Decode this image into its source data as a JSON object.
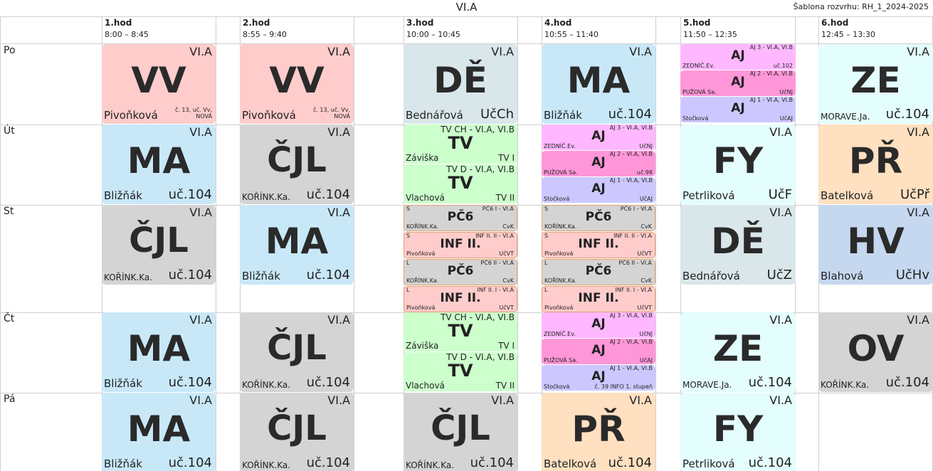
{
  "title": "VI.A",
  "template_label": "Šablona rozvrhu: RH_1_2024-2025",
  "periods": [
    {
      "name": "1.hod",
      "time": "8:00 – 8:45"
    },
    {
      "name": "2.hod",
      "time": "8:55 – 9:40"
    },
    {
      "name": "3.hod",
      "time": "10:00 – 10:45"
    },
    {
      "name": "4.hod",
      "time": "10:55 – 11:40"
    },
    {
      "name": "5.hod",
      "time": "11:50 – 12:35"
    },
    {
      "name": "6.hod",
      "time": "12:45 – 13:30"
    }
  ],
  "days": [
    "Po",
    "Út",
    "St",
    "Čt",
    "Pá"
  ],
  "colors": {
    "VV": "#ffcccc",
    "DE": "#d9e6ea",
    "MA": "#c8e8f8",
    "ZE": "#e4fdfd",
    "CJL": "#d4d4d4",
    "TV": "#ccffcc",
    "FY": "#e4fdfd",
    "PR": "#ffe0c0",
    "HV": "#c6d8f0",
    "OV": "#d4d4d4",
    "AJ3": "#ffb8ff",
    "AJ2": "#ff96d8",
    "AJ1": "#ccc8ff",
    "PC6": "#d4d4d4",
    "INF": "#ffcccc"
  },
  "lessons": [
    [
      {
        "type": "single",
        "subject": "VV",
        "class": "VI.A",
        "teacher": "Pivoňková",
        "room": "č. 13, uč. Vv, NOVÁ",
        "color": "#ffcccc"
      },
      {
        "type": "single",
        "subject": "VV",
        "class": "VI.A",
        "teacher": "Pivoňková",
        "room": "č. 13, uč. Vv, NOVÁ",
        "color": "#ffcccc"
      },
      {
        "type": "single",
        "subject": "DĚ",
        "class": "VI.A",
        "teacher": "Bednářová",
        "room": "UčCh",
        "color": "#d9e6ea"
      },
      {
        "type": "single",
        "subject": "MA",
        "class": "VI.A",
        "teacher": "Bližňák",
        "room": "uč.104",
        "color": "#c8e8f8"
      },
      {
        "type": "aj",
        "groups": [
          {
            "subject": "AJ",
            "class": "AJ 3 - VI.A, VI.B",
            "teacher": "ZEDNÍČ.Ev.",
            "room": "uč.102",
            "color": "#ffb8ff"
          },
          {
            "subject": "AJ",
            "class": "AJ 2 - VI.A, VI.B",
            "teacher": "PUŽOVÁ Sa.",
            "room": "UčNJ",
            "color": "#ff96d8"
          },
          {
            "subject": "AJ",
            "class": "AJ 1 - VI.A, VI.B",
            "teacher": "Stočková",
            "room": "UčAJ",
            "color": "#ccc8ff"
          }
        ]
      },
      {
        "type": "single",
        "subject": "ZE",
        "class": "VI.A",
        "teacher": "MORAVE.Ja.",
        "room": "uč.104",
        "color": "#e4fdfd"
      }
    ],
    [
      {
        "type": "single",
        "subject": "MA",
        "class": "VI.A",
        "teacher": "Bližňák",
        "room": "uč.104",
        "color": "#c8e8f8"
      },
      {
        "type": "single",
        "subject": "ČJL",
        "class": "VI.A",
        "teacher": "KOŘÍNK.Ka.",
        "room": "uč.104",
        "color": "#d4d4d4"
      },
      {
        "type": "tv",
        "groups": [
          {
            "subject": "TV",
            "class": "TV CH - VI.A, VI.B",
            "teacher": "Záviška",
            "room": "TV I",
            "color": "#ccffcc"
          },
          {
            "subject": "TV",
            "class": "TV D - VI.A, VI.B",
            "teacher": "Vlachová",
            "room": "TV II",
            "color": "#ccffcc"
          }
        ]
      },
      {
        "type": "aj",
        "groups": [
          {
            "subject": "AJ",
            "class": "AJ 3 - VI.A, VI.B",
            "teacher": "ZEDNÍČ.Ev.",
            "room": "UčNJ",
            "color": "#ffb8ff"
          },
          {
            "subject": "AJ",
            "class": "AJ 2 - VI.A, VI.B",
            "teacher": "PUŽOVÁ Sa.",
            "room": "uč.98",
            "color": "#ff96d8"
          },
          {
            "subject": "AJ",
            "class": "AJ 1 - VI.A, VI.B",
            "teacher": "Stočková",
            "room": "UčAJ",
            "color": "#ccc8ff"
          }
        ]
      },
      {
        "type": "single",
        "subject": "FY",
        "class": "VI.A",
        "teacher": "Petrliková",
        "room": "UčF",
        "color": "#e4fdfd"
      },
      {
        "type": "single",
        "subject": "PŘ",
        "class": "VI.A",
        "teacher": "Batelková",
        "room": "UčPř",
        "color": "#ffe0c0"
      }
    ],
    [
      {
        "type": "single",
        "subject": "ČJL",
        "class": "VI.A",
        "teacher": "KOŘÍNK.Ka.",
        "room": "uč.104",
        "color": "#d4d4d4"
      },
      {
        "type": "single",
        "subject": "MA",
        "class": "VI.A",
        "teacher": "Bližňák",
        "room": "uč.104",
        "color": "#c8e8f8"
      },
      {
        "type": "quad",
        "groups": [
          {
            "side": "S",
            "subject": "PČ6",
            "class": "PČ6 I - VI.A",
            "teacher": "KOŘÍNK.Ka.",
            "room": "CvK",
            "color": "#d4d4d4"
          },
          {
            "side": "S",
            "subject": "INF II.",
            "class": "INF II. II - VI.A",
            "teacher": "Pivoňková",
            "room": "UčVT",
            "color": "#ffcccc"
          },
          {
            "side": "L",
            "subject": "PČ6",
            "class": "PČ6 II - VI.A",
            "teacher": "KOŘÍNK.Ka.",
            "room": "CvK",
            "color": "#d4d4d4"
          },
          {
            "side": "L",
            "subject": "INF II.",
            "class": "INF II. I - VI.A",
            "teacher": "Pivoňková",
            "room": "UčVT",
            "color": "#ffcccc"
          }
        ]
      },
      {
        "type": "quad",
        "groups": [
          {
            "side": "S",
            "subject": "PČ6",
            "class": "PČ6 I - VI.A",
            "teacher": "KOŘÍNK.Ka.",
            "room": "CvK",
            "color": "#d4d4d4"
          },
          {
            "side": "S",
            "subject": "INF II.",
            "class": "INF II. II - VI.A",
            "teacher": "Pivoňková",
            "room": "UčVT",
            "color": "#ffcccc"
          },
          {
            "side": "L",
            "subject": "PČ6",
            "class": "PČ6 II - VI.A",
            "teacher": "KOŘÍNK.Ka.",
            "room": "CvK",
            "color": "#d4d4d4"
          },
          {
            "side": "L",
            "subject": "INF II.",
            "class": "INF II. I - VI.A",
            "teacher": "Pivoňková",
            "room": "UčVT",
            "color": "#ffcccc"
          }
        ]
      },
      {
        "type": "single",
        "subject": "DĚ",
        "class": "VI.A",
        "teacher": "Bednářová",
        "room": "UčZ",
        "color": "#d9e6ea"
      },
      {
        "type": "single",
        "subject": "HV",
        "class": "VI.A",
        "teacher": "Blahová",
        "room": "UčHv",
        "color": "#c6d8f0"
      }
    ],
    [
      {
        "type": "single",
        "subject": "MA",
        "class": "VI.A",
        "teacher": "Bližňák",
        "room": "uč.104",
        "color": "#c8e8f8"
      },
      {
        "type": "single",
        "subject": "ČJL",
        "class": "VI.A",
        "teacher": "KOŘÍNK.Ka.",
        "room": "uč.104",
        "color": "#d4d4d4"
      },
      {
        "type": "tv",
        "groups": [
          {
            "subject": "TV",
            "class": "TV CH - VI.A, VI.B",
            "teacher": "Záviška",
            "room": "TV I",
            "color": "#ccffcc"
          },
          {
            "subject": "TV",
            "class": "TV D - VI.A, VI.B",
            "teacher": "Vlachová",
            "room": "TV II",
            "color": "#ccffcc"
          }
        ]
      },
      {
        "type": "aj",
        "groups": [
          {
            "subject": "AJ",
            "class": "AJ 3 - VI.A, VI.B",
            "teacher": "ZEDNÍČ.Ev.",
            "room": "UčNJ",
            "color": "#ffb8ff"
          },
          {
            "subject": "AJ",
            "class": "AJ 2 - VI.A, VI.B",
            "teacher": "PUŽOVÁ Sa.",
            "room": "UčAJ",
            "color": "#ff96d8"
          },
          {
            "subject": "AJ",
            "class": "AJ 1 - VI.A, VI.B",
            "teacher": "Stočková",
            "room": "č. 39 INFO 1. stupeň",
            "color": "#ccc8ff"
          }
        ]
      },
      {
        "type": "single",
        "subject": "ZE",
        "class": "VI.A",
        "teacher": "MORAVE.Ja.",
        "room": "uč.104",
        "color": "#e4fdfd"
      },
      {
        "type": "single",
        "subject": "OV",
        "class": "VI.A",
        "teacher": "KOŘÍNK.Ka.",
        "room": "uč.104",
        "color": "#d4d4d4"
      }
    ],
    [
      {
        "type": "single",
        "subject": "MA",
        "class": "VI.A",
        "teacher": "Bližňák",
        "room": "uč.104",
        "color": "#c8e8f8"
      },
      {
        "type": "single",
        "subject": "ČJL",
        "class": "VI.A",
        "teacher": "KOŘÍNK.Ka.",
        "room": "uč.104",
        "color": "#d4d4d4"
      },
      {
        "type": "single",
        "subject": "ČJL",
        "class": "VI.A",
        "teacher": "KOŘÍNK.Ka.",
        "room": "uč.104",
        "color": "#d4d4d4"
      },
      {
        "type": "single",
        "subject": "PŘ",
        "class": "VI.A",
        "teacher": "Batelková",
        "room": "uč.104",
        "color": "#ffe0c0"
      },
      {
        "type": "single",
        "subject": "FY",
        "class": "VI.A",
        "teacher": "Petrliková",
        "room": "uč.104",
        "color": "#e4fdfd"
      },
      {
        "type": "empty"
      }
    ]
  ]
}
